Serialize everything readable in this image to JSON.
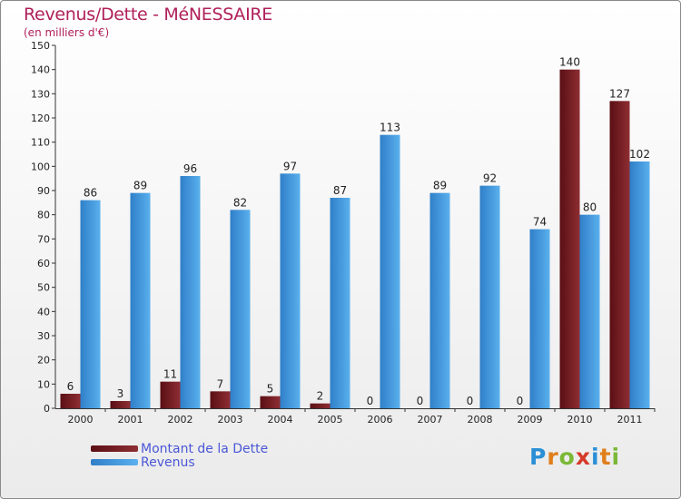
{
  "title": "Revenus/Dette - MéNESSAIRE",
  "subtitle": "(en milliers d'€)",
  "colors": {
    "title": "#b0205a",
    "debt": "#7a1f24",
    "revenue": "#4aa3e6",
    "legend_text": "#4a57d6"
  },
  "logo": {
    "letters": [
      "P",
      "r",
      "o",
      "x",
      "i",
      "t",
      "i"
    ],
    "colors": [
      "#2b8fd6",
      "#e07f1a",
      "#7bb837",
      "#d63a2a",
      "#2b8fd6",
      "#e07f1a",
      "#7bb837"
    ]
  },
  "chart_data": {
    "type": "bar",
    "title": "Revenus/Dette - MéNESSAIRE",
    "ylabel": "(en milliers d'€)",
    "xlabel": "",
    "categories": [
      "2000",
      "2001",
      "2002",
      "2003",
      "2004",
      "2005",
      "2006",
      "2007",
      "2008",
      "2009",
      "2010",
      "2011"
    ],
    "series": [
      {
        "name": "Montant de la Dette",
        "values": [
          6,
          3,
          11,
          7,
          5,
          2,
          0,
          0,
          0,
          0,
          140,
          127
        ]
      },
      {
        "name": "Revenus",
        "values": [
          86,
          89,
          96,
          82,
          97,
          87,
          113,
          89,
          92,
          74,
          80,
          102
        ]
      }
    ],
    "ylim": [
      0,
      150
    ],
    "yticks": [
      0,
      10,
      20,
      30,
      40,
      50,
      60,
      70,
      80,
      90,
      100,
      110,
      120,
      130,
      140,
      150
    ],
    "grid": false,
    "legend": "bottom-left"
  }
}
